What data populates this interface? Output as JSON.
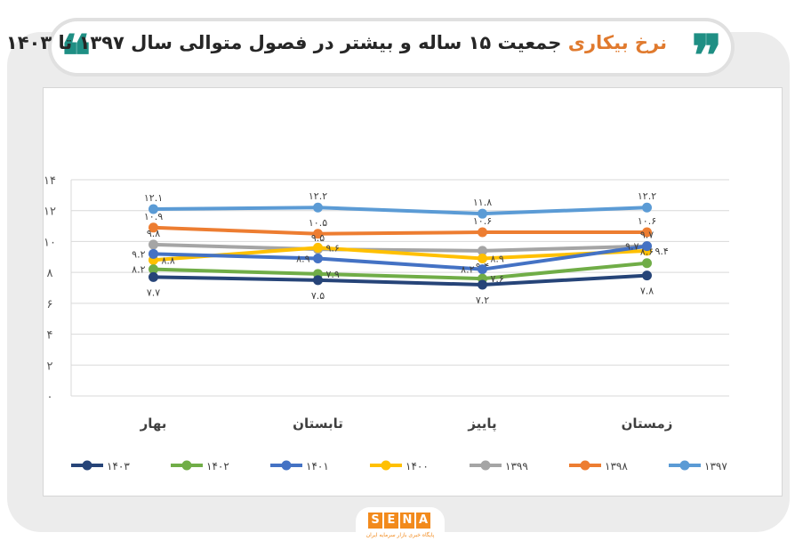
{
  "title": {
    "accent": "نرخ بیکاری",
    "rest": "جمعیت ۱۵ ساله و بیشتر در فصول متوالی سال ۱۳۹۷ تا ۱۴۰۳",
    "quote_open": "❝",
    "quote_close": "❞"
  },
  "logo": {
    "letters": [
      "S",
      "E",
      "N",
      "A"
    ],
    "subtitle": "پایگاه خبری بازار سرمایه ایران"
  },
  "chart_data": {
    "type": "line",
    "categories": [
      "بهار",
      "تابستان",
      "پاییز",
      "زمستان"
    ],
    "ylim": [
      0,
      14
    ],
    "yticks": [
      0,
      2,
      4,
      6,
      8,
      10,
      12,
      14
    ],
    "ytick_labels": [
      "۰",
      "۲",
      "۴",
      "۶",
      "۸",
      "۱۰",
      "۱۲",
      "۱۴"
    ],
    "grid": true,
    "legend_position": "bottom",
    "series": [
      {
        "name": "۱۳۹۷",
        "color": "#5b9bd5",
        "values": [
          12.1,
          12.2,
          11.8,
          12.2
        ],
        "labels": [
          "۱۲.۱",
          "۱۲.۲",
          "۱۱.۸",
          "۱۲.۲"
        ],
        "label_pos": [
          "above",
          "above",
          "above",
          "above"
        ]
      },
      {
        "name": "۱۳۹۸",
        "color": "#ed7d31",
        "values": [
          10.9,
          10.5,
          10.6,
          10.6
        ],
        "labels": [
          "۱۰.۹",
          "۱۰.۵",
          "۱۰.۶",
          "۱۰.۶"
        ],
        "label_pos": [
          "above",
          "above",
          "above",
          "above"
        ]
      },
      {
        "name": "۱۳۹۹",
        "color": "#a5a5a5",
        "values": [
          9.8,
          9.5,
          9.4,
          9.7
        ],
        "labels": [
          "۹.۸",
          "۹.۵",
          "۹.۴",
          "۹.۷"
        ],
        "label_pos": [
          "above",
          "above",
          "below",
          "above"
        ]
      },
      {
        "name": "۱۴۰۰",
        "color": "#ffc000",
        "values": [
          8.8,
          9.6,
          8.9,
          9.4
        ],
        "labels": [
          "۸.۸",
          "۹.۶",
          "۸.۹",
          "۹.۴"
        ],
        "label_pos": [
          "right",
          "right",
          "right",
          "right"
        ]
      },
      {
        "name": "۱۴۰۱",
        "color": "#4472c4",
        "values": [
          9.2,
          8.9,
          8.2,
          9.7
        ],
        "labels": [
          "۹.۲",
          "۸.۹",
          "۸.۲",
          "۹.۷"
        ],
        "label_pos": [
          "left",
          "left",
          "left",
          "left"
        ]
      },
      {
        "name": "۱۴۰۲",
        "color": "#70ad47",
        "values": [
          8.2,
          7.9,
          7.6,
          8.6
        ],
        "labels": [
          "۸.۲",
          "۷.۹",
          "۷.۶",
          "۸.۶"
        ],
        "label_pos": [
          "left",
          "right",
          "right",
          "above"
        ]
      },
      {
        "name": "۱۴۰۳",
        "color": "#264478",
        "values": [
          7.7,
          7.5,
          7.2,
          7.8
        ],
        "labels": [
          "۷.۷",
          "۷.۵",
          "۷.۲",
          "۷.۸"
        ],
        "label_pos": [
          "below",
          "below",
          "below",
          "below"
        ]
      }
    ]
  }
}
